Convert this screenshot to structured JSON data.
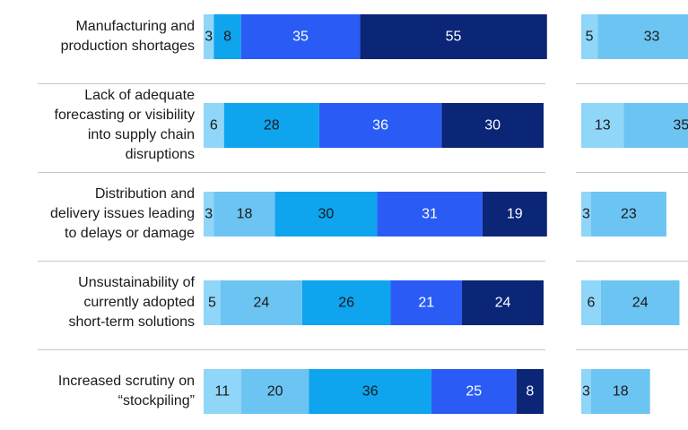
{
  "chart_data": [
    {
      "type": "stacked-bar",
      "orientation": "horizontal",
      "categories": [
        "Manufacturing and\nproduction shortages",
        "Lack of adequate\nforecasting or visibility\ninto supply chain\ndisruptions",
        "Distribution and\ndelivery issues leading\nto delays or damage",
        "Unsustainability of\ncurrently adopted\nshort-term solutions",
        "Increased scrutiny on\n“stockpiling”"
      ],
      "xlim": [
        0,
        100
      ],
      "series": [
        {
          "color": "#8fd6f8",
          "label_color": "#1a1a1a",
          "values": [
            3,
            6,
            3,
            5,
            11
          ]
        },
        {
          "color": "#6cc4f2",
          "label_color": "#1a1a1a",
          "values": [
            null,
            null,
            18,
            24,
            20
          ]
        },
        {
          "color": "#0ea4ee",
          "label_color": "#1a1a1a",
          "values": [
            8,
            28,
            30,
            26,
            36
          ]
        },
        {
          "color": "#2a5cf5",
          "label_color": "#ffffff",
          "values": [
            35,
            36,
            31,
            21,
            25
          ]
        },
        {
          "color": "#0b2577",
          "label_color": "#ffffff",
          "values": [
            55,
            30,
            19,
            24,
            8
          ]
        }
      ]
    },
    {
      "type": "stacked-bar",
      "orientation": "horizontal",
      "xlim": [
        0,
        100
      ],
      "series": [
        {
          "color": "#8fd6f8",
          "label_color": "#1a1a1a",
          "values": [
            5,
            13,
            3,
            6,
            3
          ]
        },
        {
          "color": "#6cc4f2",
          "label_color": "#1a1a1a",
          "values": [
            33,
            35,
            23,
            24,
            18
          ]
        }
      ]
    }
  ]
}
